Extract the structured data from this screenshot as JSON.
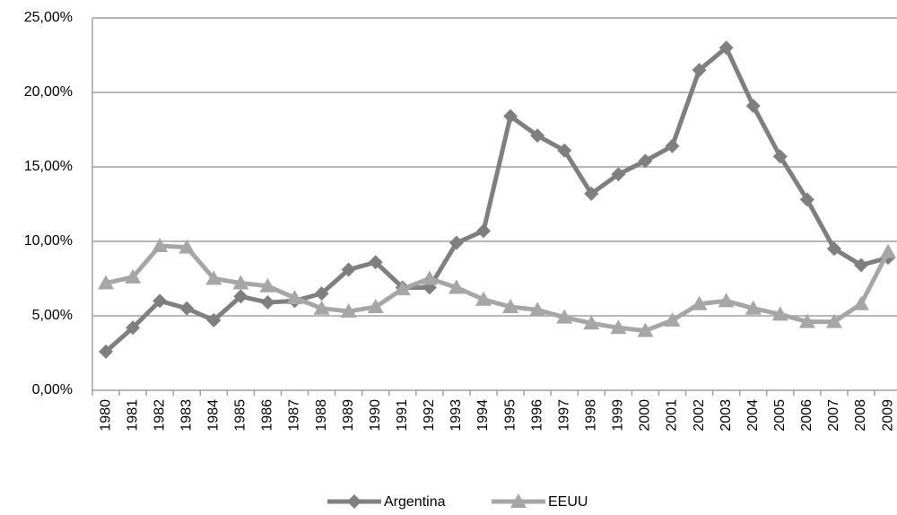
{
  "chart_data": {
    "type": "line",
    "categories": [
      "1980",
      "1981",
      "1982",
      "1983",
      "1984",
      "1985",
      "1986",
      "1987",
      "1988",
      "1989",
      "1990",
      "1991",
      "1992",
      "1993",
      "1994",
      "1995",
      "1996",
      "1997",
      "1998",
      "1999",
      "2000",
      "2001",
      "2002",
      "2003",
      "2004",
      "2005",
      "2006",
      "2007",
      "2008",
      "2009"
    ],
    "series": [
      {
        "name": "Argentina",
        "color": "#7f7f7f",
        "marker": "diamond",
        "values": [
          2.6,
          4.2,
          6.0,
          5.5,
          4.7,
          6.3,
          5.9,
          6.0,
          6.5,
          8.1,
          8.6,
          6.9,
          6.9,
          9.9,
          10.7,
          18.4,
          17.1,
          16.1,
          13.2,
          14.5,
          15.4,
          16.4,
          21.5,
          23.0,
          19.1,
          15.7,
          12.8,
          9.5,
          8.4,
          8.9
        ]
      },
      {
        "name": "EEUU",
        "color": "#a6a6a6",
        "marker": "triangle",
        "values": [
          7.2,
          7.6,
          9.7,
          9.6,
          7.5,
          7.2,
          7.0,
          6.2,
          5.5,
          5.3,
          5.6,
          6.8,
          7.5,
          6.9,
          6.1,
          5.6,
          5.4,
          4.9,
          4.5,
          4.2,
          4.0,
          4.7,
          5.8,
          6.0,
          5.5,
          5.1,
          4.6,
          4.6,
          5.8,
          9.3
        ]
      }
    ],
    "ylim": [
      0,
      25
    ],
    "yticks": [
      {
        "value": 0,
        "label": "0,00%"
      },
      {
        "value": 5,
        "label": "5,00%"
      },
      {
        "value": 10,
        "label": "10,00%"
      },
      {
        "value": 15,
        "label": "15,00%"
      },
      {
        "value": 20,
        "label": "20,00%"
      },
      {
        "value": 25,
        "label": "25,00%"
      }
    ],
    "grid": true,
    "legend": "bottom"
  }
}
